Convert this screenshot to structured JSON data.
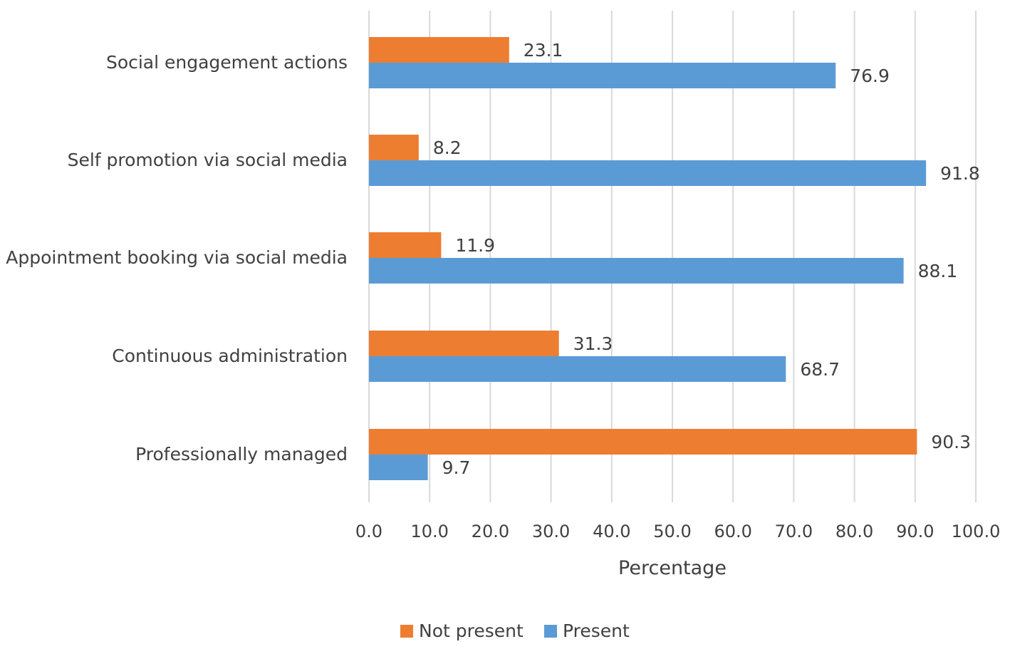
{
  "chart_data": {
    "type": "bar",
    "orientation": "horizontal",
    "title": "",
    "xlabel": "Percentage",
    "ylabel": "",
    "xlim": [
      0,
      100
    ],
    "x_ticks": [
      0,
      10,
      20,
      30,
      40,
      50,
      60,
      70,
      80,
      90,
      100
    ],
    "x_tick_labels": [
      "0.0",
      "10.0",
      "20.0",
      "30.0",
      "40.0",
      "50.0",
      "60.0",
      "70.0",
      "80.0",
      "90.0",
      "100.0"
    ],
    "grid": "vertical",
    "legend_position": "bottom",
    "categories": [
      "Social engagement actions",
      "Self promotion via social media",
      "Appointment booking via social media",
      "Continuous administration",
      "Professionally managed"
    ],
    "series": [
      {
        "name": "Not present",
        "color": "#ED7D31",
        "values": [
          23.1,
          8.2,
          11.9,
          31.3,
          90.3
        ],
        "labels": [
          "23.1",
          "8.2",
          "11.9",
          "31.3",
          "90.3"
        ]
      },
      {
        "name": "Present",
        "color": "#5B9BD5",
        "values": [
          76.9,
          91.8,
          88.1,
          68.7,
          9.7
        ],
        "labels": [
          "76.9",
          "91.8",
          "88.1",
          "68.7",
          "9.7"
        ]
      }
    ],
    "gridline_color": "#D9D9D9"
  }
}
